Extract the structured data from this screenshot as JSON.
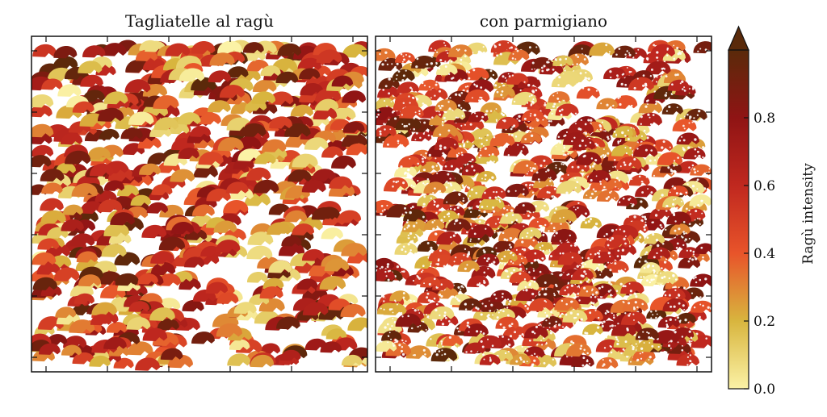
{
  "chart_data": {
    "type": "scatter",
    "panels": [
      {
        "title": "Tagliatelle al ragù",
        "topping": "none"
      },
      {
        "title": "con parmigiano",
        "topping": "parmigiano"
      }
    ],
    "colorbar": {
      "label": "Ragù intensity",
      "range": [
        0.0,
        1.0
      ],
      "ticks": [
        "0.0",
        "0.2",
        "0.4",
        "0.6",
        "0.8"
      ],
      "tick_values": [
        0.0,
        0.2,
        0.4,
        0.6,
        0.8
      ],
      "extend": "max",
      "colormap": [
        "#fbf2a6",
        "#d8b53e",
        "#e8542a",
        "#c0281f",
        "#8f1414",
        "#5a2a0a"
      ]
    },
    "marker": "pasta-nest",
    "points_per_panel": 700,
    "grid": false
  }
}
